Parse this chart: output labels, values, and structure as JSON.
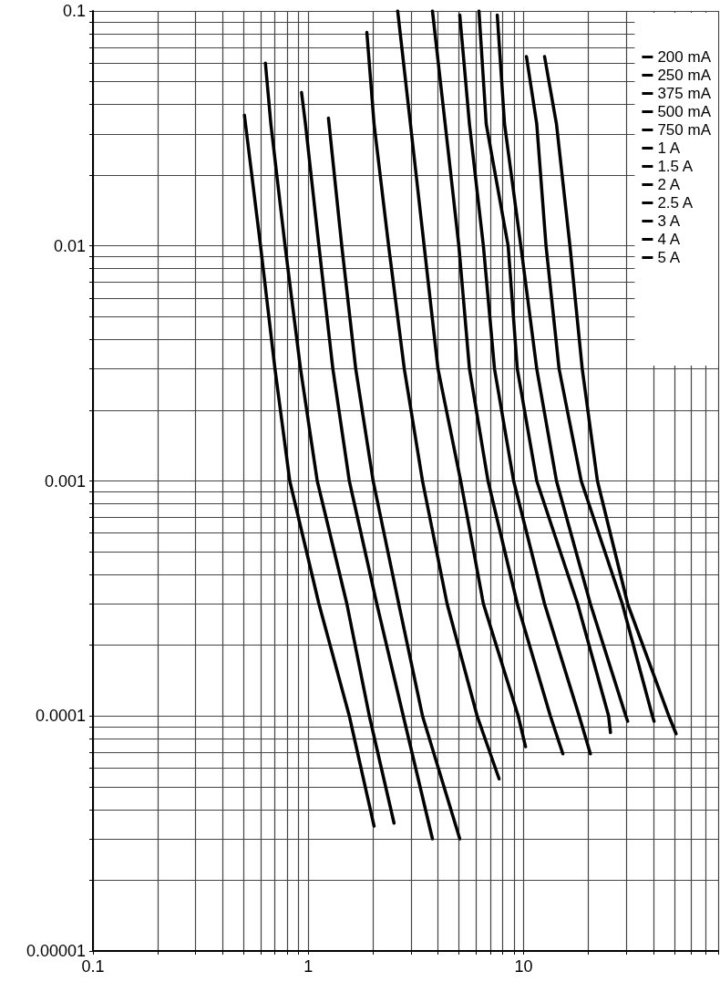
{
  "chart_data": {
    "type": "line",
    "log": "xy",
    "xlim": [
      0.1,
      80
    ],
    "ylim": [
      1e-05,
      0.1
    ],
    "xticks": [
      0.1,
      {
        "value": 0.2,
        "label": null
      },
      {
        "value": 0.3,
        "label": null
      },
      {
        "value": 0.4,
        "label": null
      },
      {
        "value": 0.5,
        "label": null
      },
      {
        "value": 0.6,
        "label": null
      },
      {
        "value": 0.7,
        "label": null
      },
      {
        "value": 0.8,
        "label": null
      },
      {
        "value": 0.9,
        "label": null
      },
      1,
      {
        "value": 2,
        "label": null
      },
      {
        "value": 3,
        "label": null
      },
      {
        "value": 4,
        "label": null
      },
      {
        "value": 5,
        "label": null
      },
      {
        "value": 6,
        "label": null
      },
      {
        "value": 7,
        "label": null
      },
      {
        "value": 8,
        "label": null
      },
      {
        "value": 9,
        "label": null
      },
      10,
      {
        "value": 20,
        "label": null
      },
      {
        "value": 30,
        "label": null
      },
      {
        "value": 40,
        "label": null
      },
      {
        "value": 50,
        "label": null
      },
      {
        "value": 60,
        "label": null
      },
      {
        "value": 70,
        "label": null
      },
      {
        "value": 80,
        "label": null
      }
    ],
    "yticks": [
      {
        "value": 1e-05,
        "label": "0.00001"
      },
      {
        "value": 2e-05,
        "label": null
      },
      {
        "value": 3e-05,
        "label": null
      },
      {
        "value": 4e-05,
        "label": null
      },
      {
        "value": 5e-05,
        "label": null
      },
      {
        "value": 6e-05,
        "label": null
      },
      {
        "value": 7e-05,
        "label": null
      },
      {
        "value": 8e-05,
        "label": null
      },
      {
        "value": 9e-05,
        "label": null
      },
      {
        "value": 0.0001,
        "label": "0.0001"
      },
      {
        "value": 0.0002,
        "label": null
      },
      {
        "value": 0.0003,
        "label": null
      },
      {
        "value": 0.0004,
        "label": null
      },
      {
        "value": 0.0005,
        "label": null
      },
      {
        "value": 0.0006,
        "label": null
      },
      {
        "value": 0.0007,
        "label": null
      },
      {
        "value": 0.0008,
        "label": null
      },
      {
        "value": 0.0009,
        "label": null
      },
      {
        "value": 0.001,
        "label": "0.001"
      },
      {
        "value": 0.002,
        "label": null
      },
      {
        "value": 0.003,
        "label": null
      },
      {
        "value": 0.004,
        "label": null
      },
      {
        "value": 0.005,
        "label": null
      },
      {
        "value": 0.006,
        "label": null
      },
      {
        "value": 0.007,
        "label": null
      },
      {
        "value": 0.008,
        "label": null
      },
      {
        "value": 0.009,
        "label": null
      },
      {
        "value": 0.01,
        "label": "0.01"
      },
      {
        "value": 0.02,
        "label": null
      },
      {
        "value": 0.03,
        "label": null
      },
      {
        "value": 0.04,
        "label": null
      },
      {
        "value": 0.05,
        "label": null
      },
      {
        "value": 0.06,
        "label": null
      },
      {
        "value": 0.07,
        "label": null
      },
      {
        "value": 0.08,
        "label": null
      },
      {
        "value": 0.09,
        "label": null
      },
      {
        "value": 0.1,
        "label": "0.1"
      }
    ],
    "grid": true,
    "legend": "top right",
    "series": [
      {
        "name": "200 mA",
        "color": "#000000",
        "x": [
          0.505,
          0.6,
          0.7,
          0.82,
          1.12,
          1.55,
          2.02
        ],
        "values": [
          0.036,
          0.01,
          0.003,
          0.001,
          0.0003,
          0.0001,
          3.4e-05
        ]
      },
      {
        "name": "250 mA",
        "color": "#000000",
        "x": [
          0.632,
          0.67,
          0.78,
          0.92,
          1.1,
          1.51,
          1.92,
          2.5
        ],
        "values": [
          0.06,
          0.033,
          0.01,
          0.003,
          0.001,
          0.0003,
          0.0001,
          3.5e-05
        ]
      },
      {
        "name": "375 mA",
        "color": "#000000",
        "x": [
          0.93,
          0.97,
          1.12,
          1.3,
          1.55,
          2.08,
          2.76,
          3.77
        ],
        "values": [
          0.045,
          0.033,
          0.01,
          0.003,
          0.001,
          0.0003,
          0.0001,
          3e-05
        ]
      },
      {
        "name": "500 mA",
        "color": "#000000",
        "x": [
          1.24,
          1.43,
          1.66,
          2.0,
          2.63,
          3.39,
          5.05
        ],
        "values": [
          0.035,
          0.01,
          0.003,
          0.001,
          0.0003,
          0.0001,
          3e-05
        ]
      },
      {
        "name": "750 mA",
        "color": "#000000",
        "x": [
          1.87,
          2.02,
          2.36,
          2.79,
          3.39,
          4.41,
          6.08,
          7.69
        ],
        "values": [
          0.081,
          0.033,
          0.01,
          0.003,
          0.001,
          0.0003,
          0.0001,
          5.4e-05
        ]
      },
      {
        "name": "1 A",
        "color": "#000000",
        "x": [
          2.6,
          2.98,
          3.45,
          4.0,
          5.1,
          6.5,
          9.43,
          10.2
        ],
        "values": [
          0.1,
          0.033,
          0.01,
          0.003,
          0.001,
          0.0003,
          0.0001,
          7.4e-05
        ]
      },
      {
        "name": "1.5 A",
        "color": "#000000",
        "x": [
          3.77,
          4.32,
          5.0,
          5.6,
          6.83,
          9.34,
          13.3,
          15.2
        ],
        "values": [
          0.1,
          0.033,
          0.01,
          0.003,
          0.001,
          0.0003,
          0.0001,
          6.9e-05
        ]
      },
      {
        "name": "2 A",
        "color": "#000000",
        "x": [
          5.05,
          5.6,
          6.5,
          7.32,
          8.98,
          12.5,
          18.1,
          20.4
        ],
        "values": [
          0.096,
          0.033,
          0.01,
          0.003,
          0.001,
          0.0003,
          0.0001,
          6.9e-05
        ]
      },
      {
        "name": "2.5 A",
        "color": "#000000",
        "x": [
          6.2,
          6.7,
          8.47,
          9.34,
          11.5,
          17.8,
          24.8,
          25.3
        ],
        "values": [
          0.1,
          0.033,
          0.01,
          0.003,
          0.001,
          0.0003,
          0.0001,
          8.5e-05
        ]
      },
      {
        "name": "3 A",
        "color": "#000000",
        "x": [
          7.54,
          8.15,
          9.7,
          11.5,
          14.2,
          20.4,
          29.8,
          30.4
        ],
        "values": [
          0.096,
          0.033,
          0.01,
          0.003,
          0.001,
          0.0003,
          0.0001,
          9.5e-05
        ]
      },
      {
        "name": "4 A",
        "color": "#000000",
        "x": [
          10.3,
          11.5,
          12.7,
          14.6,
          18.5,
          28.7,
          39.6,
          40.3
        ],
        "values": [
          0.064,
          0.033,
          0.01,
          0.003,
          0.001,
          0.0003,
          0.0001,
          9.5e-05
        ]
      },
      {
        "name": "5 A",
        "color": "#000000",
        "x": [
          12.5,
          14.2,
          16.4,
          18.7,
          22.0,
          30.4,
          47.2,
          51.0
        ],
        "values": [
          0.064,
          0.033,
          0.01,
          0.003,
          0.001,
          0.0003,
          0.0001,
          8.4e-05
        ]
      }
    ]
  }
}
